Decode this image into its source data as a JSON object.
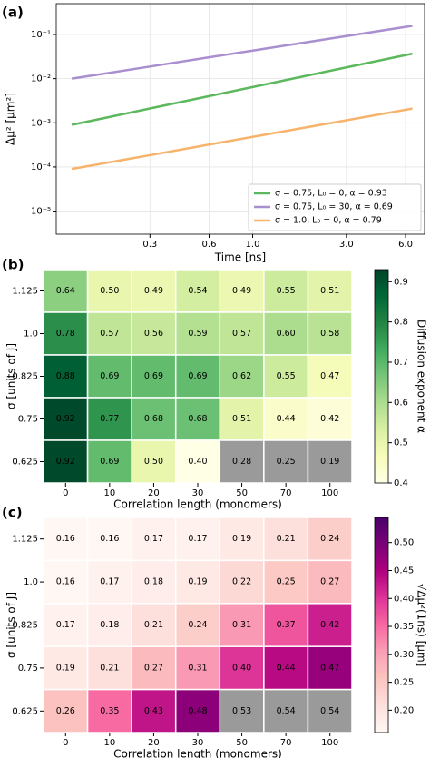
{
  "chart_data": [
    {
      "type": "line",
      "panel_label": "(a)",
      "xlabel": "Time [ns]",
      "ylabel": "Δμ² [μm²]",
      "xscale": "log",
      "yscale": "log",
      "grid": true,
      "legend": "lower right",
      "x": [
        0.12,
        0.3,
        0.6,
        1.0,
        3.0,
        6.5
      ],
      "xlim": [
        0.1,
        7.5
      ],
      "ylim": [
        3e-06,
        0.5
      ],
      "xticks": [
        0.3,
        0.6,
        {
          "value": 1,
          "label": "1.0"
        },
        {
          "value": 3,
          "label": "3.0"
        },
        {
          "value": 6,
          "label": "6.0"
        }
      ],
      "yticks": [
        {
          "value": 1e-05,
          "label": "10⁻⁵"
        },
        {
          "value": 0.0001,
          "label": "10⁻⁴"
        },
        {
          "value": 0.001,
          "label": "10⁻³"
        },
        {
          "value": 0.01,
          "label": "10⁻²"
        },
        {
          "value": 0.1,
          "label": "10⁻¹"
        }
      ],
      "series": [
        {
          "name": "σ = 0.75, L₀ = 0, α = 0.93",
          "color": "#5cb85c",
          "values": [
            0.0009,
            0.00211,
            0.00402,
            0.00646,
            0.018,
            0.0368
          ]
        },
        {
          "name": "σ = 0.75, L₀ = 30, α = 0.69",
          "color": "#a98fd0",
          "values": [
            0.01,
            0.0188,
            0.0304,
            0.0432,
            0.0922,
            0.157
          ]
        },
        {
          "name": "σ = 1.0, L₀ = 0, α = 0.79",
          "color": "#f7b36b",
          "values": [
            9e-05,
            0.000185,
            0.000321,
            0.000481,
            0.00114,
            0.0021
          ]
        }
      ]
    },
    {
      "type": "heatmap",
      "panel_label": "(b)",
      "xlabel": "Correlation length (monomers)",
      "ylabel": "σ [units of J]",
      "colorbar_label": "Diffusion exponent α",
      "categories": [
        "0",
        "10",
        "20",
        "30",
        "50",
        "70",
        "100"
      ],
      "y_categories": [
        "1.125",
        "1.0",
        "0.825",
        "0.75",
        "0.625"
      ],
      "values": [
        [
          0.64,
          0.5,
          0.49,
          0.54,
          0.49,
          0.55,
          0.51
        ],
        [
          0.78,
          0.57,
          0.56,
          0.59,
          0.57,
          0.6,
          0.58
        ],
        [
          0.88,
          0.69,
          0.69,
          0.69,
          0.62,
          0.55,
          0.47
        ],
        [
          0.92,
          0.77,
          0.68,
          0.68,
          0.51,
          0.44,
          0.42
        ],
        [
          0.92,
          0.69,
          0.5,
          0.4,
          0.28,
          0.25,
          0.19
        ]
      ],
      "value_labels": [
        [
          "0.64",
          "0.50",
          "0.49",
          "0.54",
          "0.49",
          "0.55",
          "0.51"
        ],
        [
          "0.78",
          "0.57",
          "0.56",
          "0.59",
          "0.57",
          "0.60",
          "0.58"
        ],
        [
          "0.88",
          "0.69",
          "0.69",
          "0.69",
          "0.62",
          "0.55",
          "0.47"
        ],
        [
          "0.92",
          "0.77",
          "0.68",
          "0.68",
          "0.51",
          "0.44",
          "0.42"
        ],
        [
          "0.92",
          "0.69",
          "0.50",
          "0.40",
          "0.28",
          "0.25",
          "0.19"
        ]
      ],
      "colormap": [
        "#ffffe5",
        "#f7fcb9",
        "#d9f0a3",
        "#addd8e",
        "#78c679",
        "#41ab5d",
        "#238443",
        "#006837",
        "#004529"
      ],
      "clim": [
        0.4,
        0.93
      ],
      "cticks": [
        0.4,
        0.5,
        0.6,
        0.7,
        0.8,
        0.9
      ],
      "masked": [
        [
          4,
          4
        ],
        [
          4,
          5
        ],
        [
          4,
          6
        ]
      ],
      "mask_color": "#9a9a9a"
    },
    {
      "type": "heatmap",
      "panel_label": "(c)",
      "xlabel": "Correlation length (monomers)",
      "ylabel": "σ [units of J]",
      "colorbar_label": "√Δμ²(1ns) [μm]",
      "categories": [
        "0",
        "10",
        "20",
        "30",
        "50",
        "70",
        "100"
      ],
      "y_categories": [
        "1.125",
        "1.0",
        "0.825",
        "0.75",
        "0.625"
      ],
      "values": [
        [
          0.16,
          0.16,
          0.17,
          0.17,
          0.19,
          0.21,
          0.24
        ],
        [
          0.16,
          0.17,
          0.18,
          0.19,
          0.22,
          0.25,
          0.27
        ],
        [
          0.17,
          0.18,
          0.21,
          0.24,
          0.31,
          0.37,
          0.42
        ],
        [
          0.19,
          0.21,
          0.27,
          0.31,
          0.4,
          0.44,
          0.47
        ],
        [
          0.26,
          0.35,
          0.43,
          0.48,
          0.53,
          0.54,
          0.54
        ]
      ],
      "value_labels": [
        [
          "0.16",
          "0.16",
          "0.17",
          "0.17",
          "0.19",
          "0.21",
          "0.24"
        ],
        [
          "0.16",
          "0.17",
          "0.18",
          "0.19",
          "0.22",
          "0.25",
          "0.27"
        ],
        [
          "0.17",
          "0.18",
          "0.21",
          "0.24",
          "0.31",
          "0.37",
          "0.42"
        ],
        [
          "0.19",
          "0.21",
          "0.27",
          "0.31",
          "0.40",
          "0.44",
          "0.47"
        ],
        [
          "0.26",
          "0.35",
          "0.43",
          "0.48",
          "0.53",
          "0.54",
          "0.54"
        ]
      ],
      "colormap": [
        "#fff7f3",
        "#fde0dd",
        "#fcc5c0",
        "#fa9fb5",
        "#f768a1",
        "#dd3497",
        "#ae017e",
        "#7a0177",
        "#49006a"
      ],
      "clim": [
        0.16,
        0.545
      ],
      "cticks": [
        {
          "value": 0.2,
          "label": "0.20"
        },
        0.25,
        {
          "value": 0.3,
          "label": "0.30"
        },
        0.35,
        {
          "value": 0.4,
          "label": "0.40"
        },
        0.45,
        {
          "value": 0.5,
          "label": "0.50"
        }
      ],
      "masked": [
        [
          4,
          4
        ],
        [
          4,
          5
        ],
        [
          4,
          6
        ]
      ],
      "mask_color": "#9a9a9a"
    }
  ]
}
